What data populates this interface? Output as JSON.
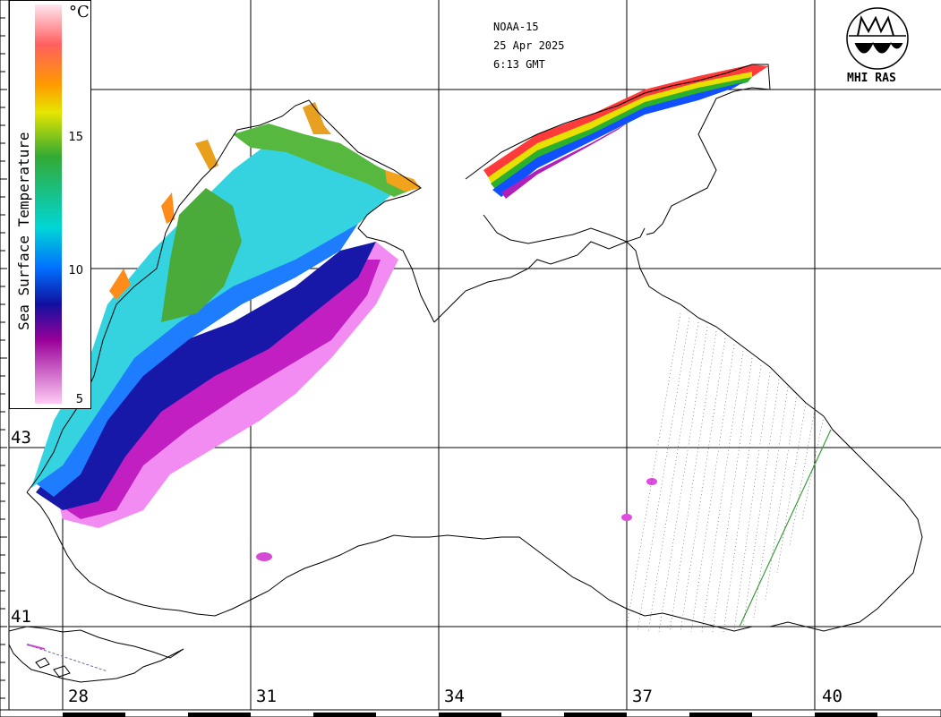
{
  "satellite": "NOAA-15",
  "date": "25 Apr 2025",
  "time": "6:13 GMT",
  "organization": "MHI RAS",
  "legend": {
    "title": "Sea Surface Temperature",
    "unit": "°C",
    "ticks": [
      "15",
      "10",
      "5"
    ],
    "colors": [
      "#ffe6f0",
      "#ff3c3c",
      "#ff9900",
      "#e6e600",
      "#33aa33",
      "#00d6d6",
      "#0070ff",
      "#1010a0",
      "#990099",
      "#ffccf5"
    ]
  },
  "longitude_labels": [
    "28",
    "31",
    "34",
    "37",
    "40"
  ],
  "latitude_labels": [
    "43",
    "41"
  ],
  "colors": {
    "coast": "#000000",
    "grid": "#000000",
    "cold": "#d41fd4",
    "mid": "#1a1ab0",
    "cyan": "#2ed6e6",
    "warm": "#3da83d"
  }
}
